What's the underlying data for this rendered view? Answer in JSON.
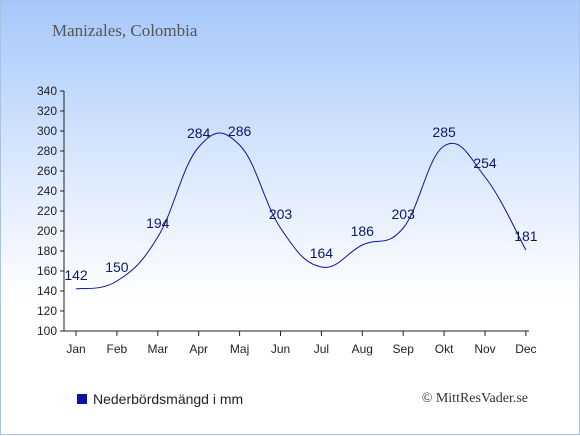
{
  "header": {
    "title": "Manizales, Colombia"
  },
  "legend": {
    "label": "Nederbördsmängd i mm",
    "color": "#0a14a3"
  },
  "footer": {
    "copyright": "© MittResVader.se"
  },
  "chart_data": {
    "type": "line",
    "title": "Manizales, Colombia",
    "categories": [
      "Jan",
      "Feb",
      "Mar",
      "Apr",
      "Maj",
      "Jun",
      "Jul",
      "Aug",
      "Sep",
      "Okt",
      "Nov",
      "Dec"
    ],
    "series": [
      {
        "name": "Nederbördsmängd i mm",
        "values": [
          142,
          150,
          194,
          284,
          286,
          203,
          164,
          186,
          203,
          285,
          254,
          181
        ]
      }
    ],
    "ylim": [
      100,
      340
    ],
    "yticks": [
      100,
      120,
      140,
      160,
      180,
      200,
      220,
      240,
      260,
      280,
      300,
      320,
      340
    ],
    "grid": false,
    "legend_position": "bottom-left",
    "line_color": "#0a14a3"
  }
}
